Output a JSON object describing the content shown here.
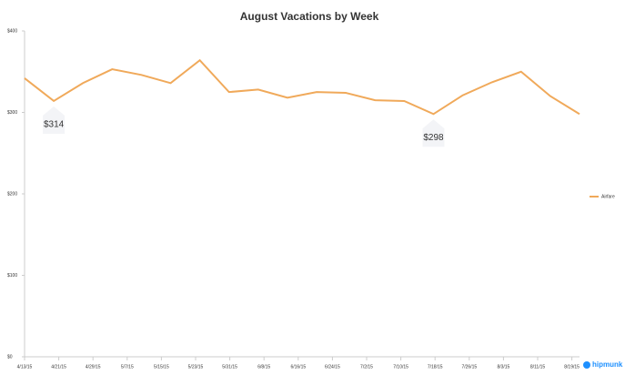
{
  "chart_data": {
    "type": "line",
    "title": "August Vacations by Week",
    "categories": [
      null,
      null,
      null,
      null,
      null,
      null,
      null,
      null,
      null,
      null,
      null,
      null,
      null,
      null,
      null,
      null,
      null,
      null,
      null,
      null
    ],
    "xtick_labels": [
      "4/13/15",
      "4/21/15",
      "4/29/15",
      "5/7/15",
      "5/15/15",
      "5/23/15",
      "5/31/15",
      "6/8/15",
      "6/16/15",
      "6/24/15",
      "7/2/15",
      "7/10/15",
      "7/18/15",
      "7/26/15",
      "8/3/15",
      "8/11/15",
      "8/19/15"
    ],
    "series": [
      {
        "name": "Airfare",
        "color": "#f0a95a",
        "values": [
          342,
          314,
          336,
          353,
          346,
          336,
          364,
          325,
          328,
          318,
          325,
          324,
          315,
          314,
          298,
          321,
          337,
          350,
          320,
          298
        ]
      }
    ],
    "ylim": [
      0,
      400
    ],
    "yticks": [
      {
        "value": 0,
        "label": "$0"
      },
      {
        "value": 100,
        "label": "$100"
      },
      {
        "value": 200,
        "label": "$200"
      },
      {
        "value": 300,
        "label": "$300"
      },
      {
        "value": 400,
        "label": "$400"
      }
    ],
    "annotations": [
      {
        "text": "$314",
        "index": 1
      },
      {
        "text": "$298",
        "index": 14
      }
    ],
    "legend": "right",
    "brand": "hipmunk"
  }
}
